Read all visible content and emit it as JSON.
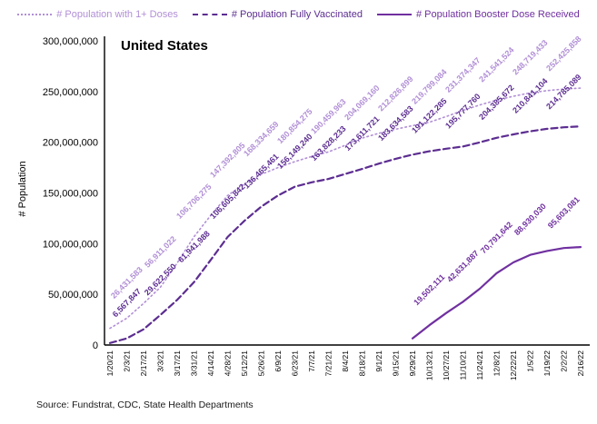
{
  "title": "United States",
  "source": "Source: Fundstrat, CDC, State Health Departments",
  "chart_data": {
    "type": "line",
    "title": "United States",
    "xlabel": "",
    "ylabel": "# Population",
    "ylim": [
      0,
      300000000
    ],
    "grid": false,
    "legend_position": "top",
    "ytick_values": [
      0,
      50000000,
      100000000,
      150000000,
      200000000,
      250000000,
      300000000
    ],
    "ytick_labels": [
      "0",
      "50,000,000",
      "100,000,000",
      "150,000,000",
      "200,000,000",
      "250,000,000",
      "300,000,000"
    ],
    "x": [
      "1/20/21",
      "2/3/21",
      "2/17/21",
      "3/3/21",
      "3/17/21",
      "3/31/21",
      "4/14/21",
      "4/28/21",
      "5/12/21",
      "5/26/21",
      "6/9/21",
      "6/23/21",
      "7/7/21",
      "7/21/21",
      "8/4/21",
      "8/18/21",
      "9/1/21",
      "9/15/21",
      "9/29/21",
      "10/13/21",
      "10/27/21",
      "11/10/21",
      "11/24/21",
      "12/8/21",
      "12/22/21",
      "1/5/22",
      "1/19/22",
      "2/2/22",
      "2/16/22"
    ],
    "series": [
      {
        "name": "# Population with 1+ Doses",
        "color": "#B18FD6",
        "line": "dotted",
        "values": [
          16500000,
          26431583,
          41000000,
          56911022,
          81000000,
          106706275,
          128000000,
          147392805,
          159000000,
          168334659,
          175000000,
          180854275,
          186000000,
          190459963,
          197000000,
          204069160,
          208800000,
          212826899,
          216400000,
          219799084,
          225300000,
          231374347,
          236800000,
          241541524,
          245400000,
          248719433,
          250900000,
          252425858,
          253400000
        ],
        "labeled_points": [
          {
            "x": "2/3/21",
            "value": 26431583,
            "label": "26,431,583"
          },
          {
            "x": "3/3/21",
            "value": 56911022,
            "label": "56,911,022"
          },
          {
            "x": "3/31/21",
            "value": 106706275,
            "label": "106,706,275"
          },
          {
            "x": "4/28/21",
            "value": 147392805,
            "label": "147,392,805"
          },
          {
            "x": "5/26/21",
            "value": 168334659,
            "label": "168,334,659"
          },
          {
            "x": "6/23/21",
            "value": 180854275,
            "label": "180,854,275"
          },
          {
            "x": "7/21/21",
            "value": 190459963,
            "label": "190,459,963"
          },
          {
            "x": "8/18/21",
            "value": 204069160,
            "label": "204,069,160"
          },
          {
            "x": "9/15/21",
            "value": 212826899,
            "label": "212,826,899"
          },
          {
            "x": "10/13/21",
            "value": 219799084,
            "label": "219,799,084"
          },
          {
            "x": "11/10/21",
            "value": 231374347,
            "label": "231,374,347"
          },
          {
            "x": "12/8/21",
            "value": 241541524,
            "label": "241,541,524"
          },
          {
            "x": "1/5/22",
            "value": 248719433,
            "label": "248,719,433"
          },
          {
            "x": "2/2/22",
            "value": 252425858,
            "label": "252,425,858"
          }
        ]
      },
      {
        "name": "# Population Fully Vaccinated",
        "color": "#5C2D91",
        "line": "dashed",
        "values": [
          2000000,
          6567847,
          15500000,
          29622550,
          44500000,
          61941988,
          84000000,
          106605842,
          122500000,
          136465461,
          147500000,
          156149240,
          160500000,
          163828233,
          168700000,
          173611721,
          178900000,
          183634583,
          187800000,
          191122285,
          193600000,
          195777760,
          199900000,
          204385672,
          207800000,
          210841104,
          213200000,
          214785089,
          215600000
        ],
        "labeled_points": [
          {
            "x": "2/3/21",
            "value": 6567847,
            "label": "6,567,847"
          },
          {
            "x": "3/3/21",
            "value": 29622550,
            "label": "29,622,550"
          },
          {
            "x": "3/31/21",
            "value": 61941988,
            "label": "61,941,988"
          },
          {
            "x": "4/28/21",
            "value": 106605842,
            "label": "106,605,842"
          },
          {
            "x": "5/26/21",
            "value": 136465461,
            "label": "136,465,461"
          },
          {
            "x": "6/23/21",
            "value": 156149240,
            "label": "156,149,240"
          },
          {
            "x": "7/21/21",
            "value": 163828233,
            "label": "163,828,233"
          },
          {
            "x": "8/18/21",
            "value": 173611721,
            "label": "173,611,721"
          },
          {
            "x": "9/15/21",
            "value": 183634583,
            "label": "183,634,583"
          },
          {
            "x": "10/13/21",
            "value": 191122285,
            "label": "191,122,285"
          },
          {
            "x": "11/10/21",
            "value": 195777760,
            "label": "195,777,760"
          },
          {
            "x": "12/8/21",
            "value": 204385672,
            "label": "204,385,672"
          },
          {
            "x": "1/5/22",
            "value": 210841104,
            "label": "210,841,104"
          },
          {
            "x": "2/2/22",
            "value": 214785089,
            "label": "214,785,089"
          }
        ]
      },
      {
        "name": "# Population Booster Dose Received",
        "color": "#7030A0",
        "line": "solid",
        "values": [
          null,
          null,
          null,
          null,
          null,
          null,
          null,
          null,
          null,
          null,
          null,
          null,
          null,
          null,
          null,
          null,
          null,
          null,
          6500000,
          19502111,
          31500000,
          42631887,
          55500000,
          70791642,
          81500000,
          88930030,
          92800000,
          95603081,
          96600000
        ],
        "labeled_points": [
          {
            "x": "10/13/21",
            "value": 19502111,
            "label": "19,502,111"
          },
          {
            "x": "11/10/21",
            "value": 42631887,
            "label": "42,631,887"
          },
          {
            "x": "12/8/21",
            "value": 70791642,
            "label": "70,791,642"
          },
          {
            "x": "1/5/22",
            "value": 88930030,
            "label": "88,930,030"
          },
          {
            "x": "2/2/22",
            "value": 95603081,
            "label": "95,603,081"
          }
        ]
      }
    ]
  }
}
